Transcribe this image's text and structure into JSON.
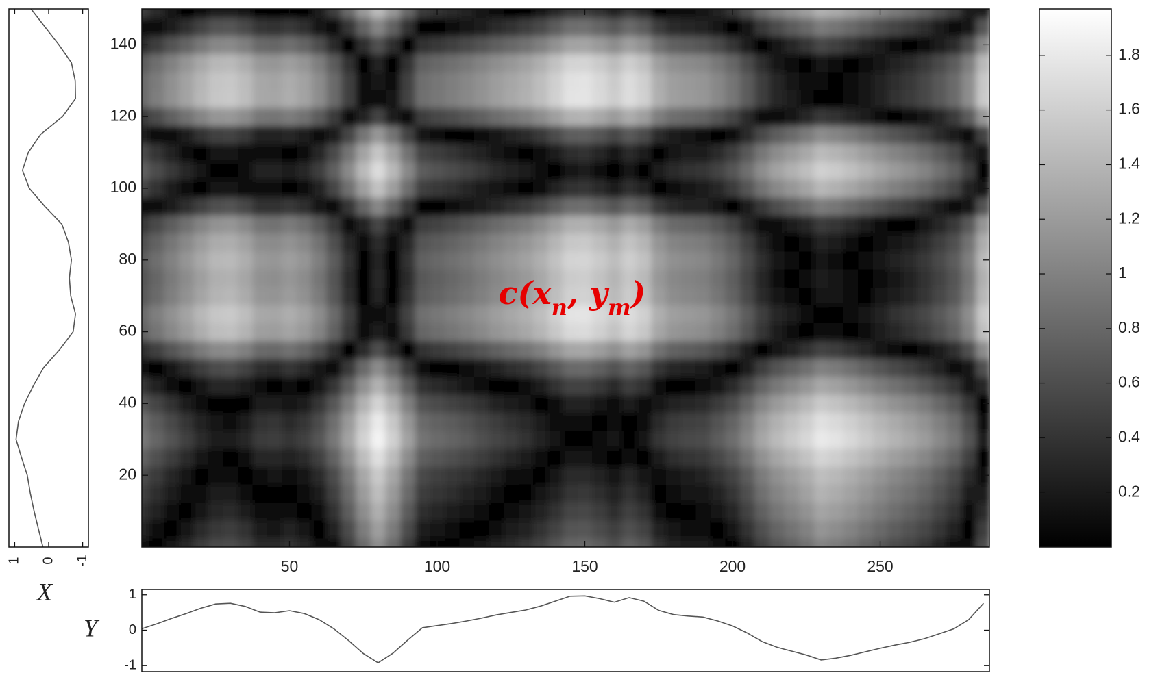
{
  "chart_data": [
    {
      "type": "heatmap",
      "xlim": [
        0,
        287
      ],
      "ylim": [
        0,
        150
      ],
      "xticks": [
        50,
        100,
        150,
        200,
        250
      ],
      "yticks": [
        20,
        40,
        60,
        80,
        100,
        120,
        140
      ],
      "colormap": "gray",
      "clim": [
        0,
        1.97
      ],
      "cticks": [
        0.2,
        0.4,
        0.6,
        0.8,
        1,
        1.2,
        1.4,
        1.6,
        1.8
      ],
      "annotation": [
        "c(",
        "x",
        "n",
        ", ",
        "y",
        "m",
        ")"
      ],
      "annotation_color": "#e60000"
    },
    {
      "type": "line",
      "orientation": "vertical",
      "label": "X",
      "color": "#555555",
      "y": [
        0,
        5,
        10,
        15,
        20,
        25,
        30,
        35,
        40,
        45,
        50,
        55,
        60,
        65,
        70,
        75,
        80,
        85,
        90,
        95,
        100,
        105,
        110,
        115,
        120,
        125,
        130,
        135,
        140,
        145,
        150
      ],
      "values": [
        0.17,
        0.3,
        0.43,
        0.54,
        0.63,
        0.8,
        0.96,
        0.89,
        0.71,
        0.45,
        0.15,
        -0.32,
        -0.72,
        -0.79,
        -0.65,
        -0.61,
        -0.67,
        -0.58,
        -0.39,
        0.12,
        0.57,
        0.77,
        0.6,
        0.24,
        -0.41,
        -0.79,
        -0.78,
        -0.67,
        -0.3,
        0.11,
        0.52
      ],
      "xlim": [
        1.17,
        -1.17
      ],
      "xticks": [
        1,
        0,
        -1
      ]
    },
    {
      "type": "line",
      "label": "Y",
      "color": "#555555",
      "x": [
        0,
        5,
        10,
        15,
        20,
        25,
        30,
        35,
        40,
        45,
        50,
        55,
        60,
        65,
        70,
        75,
        80,
        85,
        90,
        95,
        100,
        105,
        110,
        115,
        120,
        125,
        130,
        135,
        140,
        145,
        150,
        155,
        160,
        165,
        170,
        175,
        180,
        185,
        190,
        195,
        200,
        205,
        210,
        215,
        220,
        225,
        230,
        235,
        240,
        245,
        250,
        255,
        260,
        265,
        270,
        275,
        280,
        285
      ],
      "values": [
        0.04,
        0.18,
        0.33,
        0.47,
        0.62,
        0.74,
        0.76,
        0.67,
        0.51,
        0.49,
        0.55,
        0.47,
        0.3,
        0.04,
        -0.29,
        -0.66,
        -0.92,
        -0.65,
        -0.28,
        0.07,
        0.13,
        0.19,
        0.26,
        0.34,
        0.43,
        0.5,
        0.57,
        0.68,
        0.82,
        0.96,
        0.97,
        0.89,
        0.79,
        0.92,
        0.82,
        0.56,
        0.44,
        0.4,
        0.37,
        0.26,
        0.12,
        -0.08,
        -0.32,
        -0.48,
        -0.59,
        -0.7,
        -0.84,
        -0.79,
        -0.71,
        -0.61,
        -0.51,
        -0.42,
        -0.34,
        -0.24,
        -0.1,
        0.04,
        0.3,
        0.76
      ],
      "ylim": [
        -1.17,
        1.15
      ],
      "yticks": [
        1,
        0,
        -1
      ]
    }
  ]
}
